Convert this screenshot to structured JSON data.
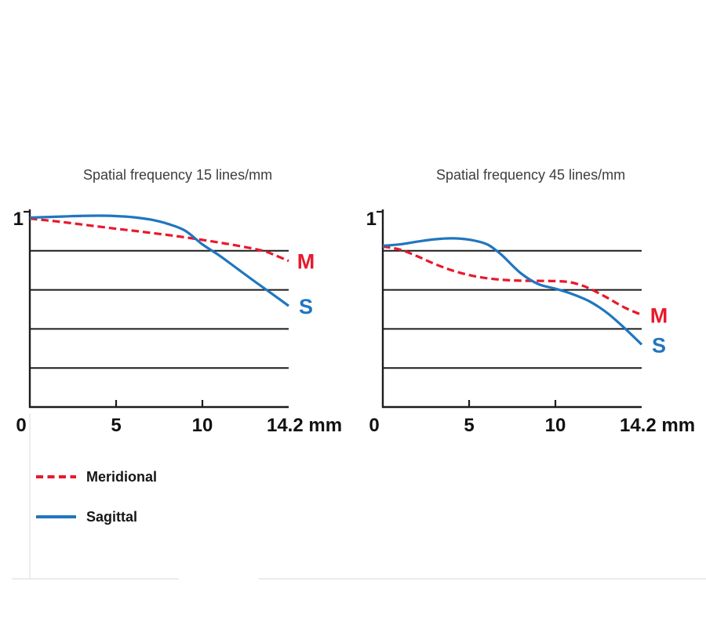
{
  "figure": {
    "background": "#ffffff",
    "title_color": "#3d3d3d",
    "axis_color": "#1c1c1c",
    "text_color": "#111111",
    "divider_color": "#ebebeb"
  },
  "legend": {
    "items": [
      {
        "label": "Meridional",
        "color": "#e8192c",
        "style": "dashed"
      },
      {
        "label": "Sagittal",
        "color": "#2076bf",
        "style": "solid"
      }
    ]
  },
  "chart_data": [
    {
      "type": "line",
      "title": "Spatial frequency 15 lines/mm",
      "x_ticks": [
        0,
        5,
        10
      ],
      "x_tick_labels": [
        "0",
        "5",
        "10"
      ],
      "x_end_label": "14.2 mm",
      "x_end_value": 14.2,
      "y_top_label": "1",
      "xlim": [
        0,
        15
      ],
      "ylim": [
        0,
        1
      ],
      "gridlines_y": [
        0.2,
        0.4,
        0.6,
        0.8
      ],
      "grid": true,
      "legend_position": "below-left",
      "series": [
        {
          "name": "Meridional",
          "end_label": "M",
          "color": "#e8192c",
          "dashed": true,
          "points": [
            [
              0,
              0.965
            ],
            [
              1,
              0.956
            ],
            [
              2,
              0.946
            ],
            [
              3,
              0.935
            ],
            [
              4,
              0.924
            ],
            [
              5,
              0.913
            ],
            [
              6,
              0.903
            ],
            [
              7,
              0.892
            ],
            [
              8,
              0.881
            ],
            [
              9,
              0.869
            ],
            [
              10,
              0.856
            ],
            [
              11,
              0.842
            ],
            [
              12,
              0.827
            ],
            [
              13,
              0.81
            ],
            [
              13.6,
              0.798
            ],
            [
              14.2,
              0.778
            ],
            [
              15,
              0.748
            ]
          ]
        },
        {
          "name": "Sagittal",
          "end_label": "S",
          "color": "#2076bf",
          "dashed": false,
          "points": [
            [
              0,
              0.97
            ],
            [
              1,
              0.973
            ],
            [
              2,
              0.976
            ],
            [
              3,
              0.979
            ],
            [
              4,
              0.98
            ],
            [
              5,
              0.978
            ],
            [
              6,
              0.972
            ],
            [
              7,
              0.96
            ],
            [
              8,
              0.938
            ],
            [
              9,
              0.903
            ],
            [
              10,
              0.833
            ],
            [
              11,
              0.775
            ],
            [
              12,
              0.71
            ],
            [
              13,
              0.645
            ],
            [
              14,
              0.582
            ],
            [
              15,
              0.518
            ]
          ]
        }
      ]
    },
    {
      "type": "line",
      "title": "Spatial frequency 45 lines/mm",
      "x_ticks": [
        0,
        5,
        10
      ],
      "x_tick_labels": [
        "0",
        "5",
        "10"
      ],
      "x_end_label": "14.2 mm",
      "x_end_value": 14.2,
      "y_top_label": "1",
      "xlim": [
        0,
        15
      ],
      "ylim": [
        0,
        1
      ],
      "gridlines_y": [
        0.2,
        0.4,
        0.6,
        0.8
      ],
      "grid": true,
      "series": [
        {
          "name": "Meridional",
          "end_label": "M",
          "color": "#e8192c",
          "dashed": true,
          "points": [
            [
              0,
              0.822
            ],
            [
              1,
              0.806
            ],
            [
              2,
              0.772
            ],
            [
              3,
              0.733
            ],
            [
              4,
              0.7
            ],
            [
              5,
              0.676
            ],
            [
              6,
              0.66
            ],
            [
              7,
              0.651
            ],
            [
              8,
              0.647
            ],
            [
              9,
              0.646
            ],
            [
              10,
              0.645
            ],
            [
              10.8,
              0.64
            ],
            [
              11.5,
              0.624
            ],
            [
              12,
              0.606
            ],
            [
              13,
              0.56
            ],
            [
              14,
              0.51
            ],
            [
              15,
              0.472
            ]
          ]
        },
        {
          "name": "Sagittal",
          "end_label": "S",
          "color": "#2076bf",
          "dashed": false,
          "points": [
            [
              0,
              0.826
            ],
            [
              1,
              0.833
            ],
            [
              2,
              0.847
            ],
            [
              3,
              0.859
            ],
            [
              4,
              0.864
            ],
            [
              5,
              0.857
            ],
            [
              6,
              0.835
            ],
            [
              6.6,
              0.8
            ],
            [
              7,
              0.77
            ],
            [
              8,
              0.685
            ],
            [
              9,
              0.63
            ],
            [
              10,
              0.606
            ],
            [
              11,
              0.578
            ],
            [
              12,
              0.54
            ],
            [
              13,
              0.482
            ],
            [
              14,
              0.405
            ],
            [
              15,
              0.32
            ]
          ]
        }
      ]
    }
  ]
}
